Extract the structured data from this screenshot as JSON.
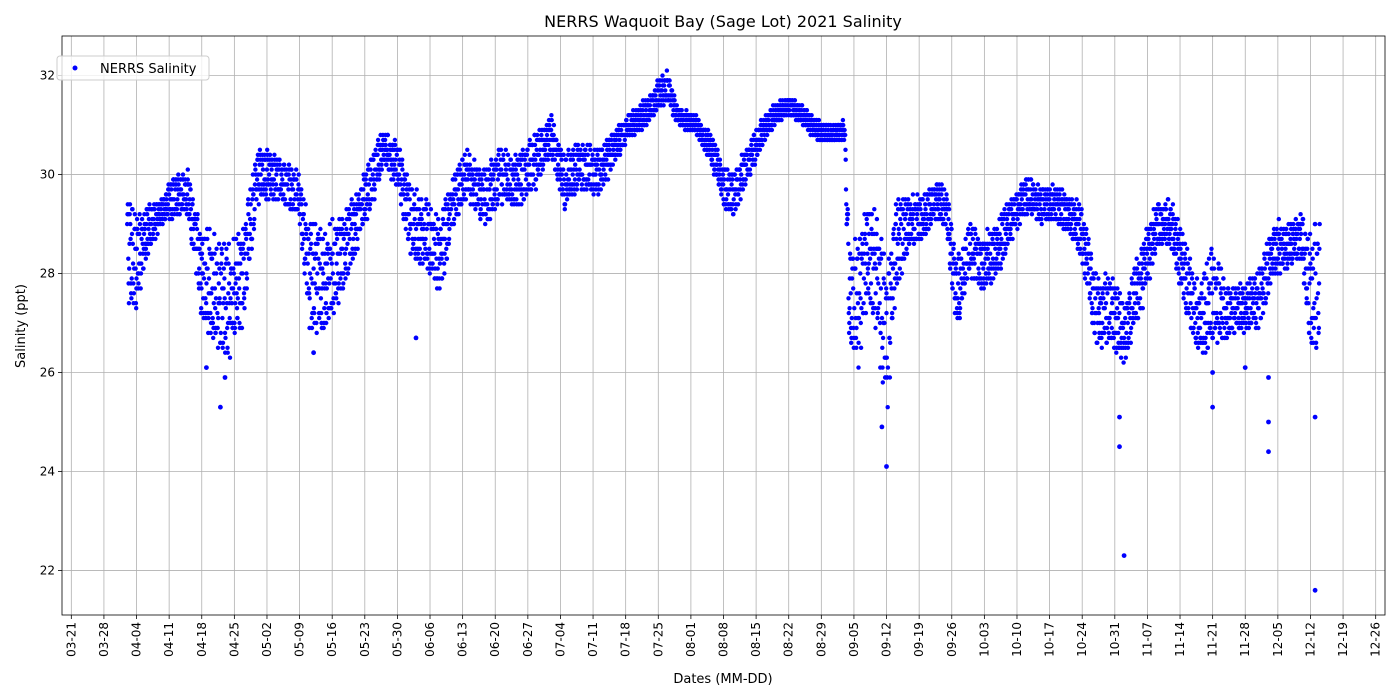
{
  "chart_data": {
    "type": "scatter",
    "title": "NERRS Waquoit Bay (Sage Lot) 2021 Salinity",
    "xlabel": "Dates (MM-DD)",
    "ylabel": "Salinity (ppt)",
    "x_range": [
      "2021-03-19",
      "2021-12-28"
    ],
    "ylim": [
      21.1,
      32.8
    ],
    "grid": true,
    "legend_position": "upper left",
    "marker_color": "#0000ff",
    "x_ticks": [
      "03-21",
      "03-28",
      "04-04",
      "04-11",
      "04-18",
      "04-25",
      "05-02",
      "05-09",
      "05-16",
      "05-23",
      "05-30",
      "06-06",
      "06-13",
      "06-20",
      "06-27",
      "07-04",
      "07-11",
      "07-18",
      "07-25",
      "08-01",
      "08-08",
      "08-15",
      "08-22",
      "08-29",
      "09-05",
      "09-12",
      "09-19",
      "09-26",
      "10-03",
      "10-10",
      "10-17",
      "10-24",
      "10-31",
      "11-07",
      "11-14",
      "11-21",
      "11-28",
      "12-05",
      "12-12",
      "12-19",
      "12-26"
    ],
    "y_ticks": [
      "22",
      "24",
      "26",
      "28",
      "30",
      "32"
    ],
    "series": [
      {
        "name": "NERRS Salinity",
        "profile": [
          [
            "2021-04-02",
            28.5,
            1.2
          ],
          [
            "2021-04-04",
            28.2,
            1.0
          ],
          [
            "2021-04-06",
            28.8,
            0.6
          ],
          [
            "2021-04-09",
            29.2,
            0.3
          ],
          [
            "2021-04-12",
            29.6,
            0.5
          ],
          [
            "2021-04-15",
            29.6,
            0.5
          ],
          [
            "2021-04-18",
            28.0,
            1.0
          ],
          [
            "2021-04-21",
            27.5,
            1.3
          ],
          [
            "2021-04-24",
            27.5,
            1.2
          ],
          [
            "2021-04-27",
            28.0,
            1.0
          ],
          [
            "2021-04-30",
            30.0,
            0.6
          ],
          [
            "2021-05-03",
            30.0,
            0.5
          ],
          [
            "2021-05-06",
            29.8,
            0.5
          ],
          [
            "2021-05-09",
            29.5,
            0.5
          ],
          [
            "2021-05-11",
            28.0,
            1.2
          ],
          [
            "2021-05-14",
            27.8,
            1.1
          ],
          [
            "2021-05-17",
            28.2,
            1.0
          ],
          [
            "2021-05-21",
            29.0,
            0.7
          ],
          [
            "2021-05-24",
            29.8,
            0.6
          ],
          [
            "2021-05-27",
            30.5,
            0.4
          ],
          [
            "2021-05-30",
            30.2,
            0.5
          ],
          [
            "2021-06-02",
            29.0,
            0.8
          ],
          [
            "2021-06-05",
            28.8,
            0.8
          ],
          [
            "2021-06-08",
            28.3,
            0.8
          ],
          [
            "2021-06-11",
            29.5,
            0.6
          ],
          [
            "2021-06-14",
            30.0,
            0.5
          ],
          [
            "2021-06-18",
            29.5,
            0.6
          ],
          [
            "2021-06-21",
            30.0,
            0.6
          ],
          [
            "2021-06-24",
            29.8,
            0.6
          ],
          [
            "2021-06-28",
            30.2,
            0.6
          ],
          [
            "2021-07-02",
            30.8,
            0.4
          ],
          [
            "2021-07-05",
            29.8,
            0.6
          ],
          [
            "2021-07-08",
            30.2,
            0.5
          ],
          [
            "2021-07-12",
            30.0,
            0.5
          ],
          [
            "2021-07-15",
            30.5,
            0.4
          ],
          [
            "2021-07-18",
            30.9,
            0.3
          ],
          [
            "2021-07-22",
            31.2,
            0.3
          ],
          [
            "2021-07-25",
            31.6,
            0.3
          ],
          [
            "2021-07-27",
            31.8,
            0.3
          ],
          [
            "2021-07-29",
            31.2,
            0.2
          ],
          [
            "2021-08-02",
            31.0,
            0.2
          ],
          [
            "2021-08-05",
            30.6,
            0.3
          ],
          [
            "2021-08-08",
            29.8,
            0.5
          ],
          [
            "2021-08-10",
            29.6,
            0.5
          ],
          [
            "2021-08-13",
            30.2,
            0.4
          ],
          [
            "2021-08-16",
            30.8,
            0.3
          ],
          [
            "2021-08-19",
            31.2,
            0.2
          ],
          [
            "2021-08-22",
            31.4,
            0.2
          ],
          [
            "2021-08-25",
            31.2,
            0.2
          ],
          [
            "2021-08-28",
            30.9,
            0.2
          ],
          [
            "2021-08-31",
            30.8,
            0.2
          ],
          [
            "2021-09-03",
            30.9,
            0.2
          ],
          [
            "2021-09-04",
            27.5,
            1.1
          ],
          [
            "2021-09-06",
            27.5,
            1.4
          ],
          [
            "2021-09-08",
            28.5,
            1.1
          ],
          [
            "2021-09-10",
            28.0,
            1.3
          ],
          [
            "2021-09-12",
            26.5,
            1.6
          ],
          [
            "2021-09-14",
            28.5,
            1.0
          ],
          [
            "2021-09-17",
            29.0,
            0.6
          ],
          [
            "2021-09-20",
            29.2,
            0.5
          ],
          [
            "2021-09-23",
            29.5,
            0.4
          ],
          [
            "2021-09-25",
            29.2,
            0.5
          ],
          [
            "2021-09-27",
            27.5,
            0.8
          ],
          [
            "2021-09-30",
            28.5,
            0.6
          ],
          [
            "2021-10-03",
            28.2,
            0.6
          ],
          [
            "2021-10-06",
            28.5,
            0.6
          ],
          [
            "2021-10-09",
            29.2,
            0.5
          ],
          [
            "2021-10-12",
            29.6,
            0.4
          ],
          [
            "2021-10-15",
            29.4,
            0.4
          ],
          [
            "2021-10-18",
            29.4,
            0.4
          ],
          [
            "2021-10-21",
            29.2,
            0.4
          ],
          [
            "2021-10-24",
            28.8,
            0.6
          ],
          [
            "2021-10-27",
            27.2,
            0.8
          ],
          [
            "2021-10-30",
            27.3,
            0.8
          ],
          [
            "2021-11-02",
            26.8,
            0.7
          ],
          [
            "2021-11-06",
            28.0,
            0.7
          ],
          [
            "2021-11-09",
            29.0,
            0.5
          ],
          [
            "2021-11-12",
            29.0,
            0.5
          ],
          [
            "2021-11-15",
            28.0,
            0.8
          ],
          [
            "2021-11-18",
            27.0,
            0.8
          ],
          [
            "2021-11-21",
            27.5,
            1.1
          ],
          [
            "2021-11-24",
            27.2,
            0.6
          ],
          [
            "2021-11-28",
            27.3,
            0.5
          ],
          [
            "2021-12-01",
            27.5,
            0.6
          ],
          [
            "2021-12-04",
            28.5,
            0.6
          ],
          [
            "2021-12-07",
            28.5,
            0.5
          ],
          [
            "2021-12-10",
            28.8,
            0.5
          ],
          [
            "2021-12-12",
            27.5,
            1.3
          ],
          [
            "2021-12-14",
            28.0,
            1.5
          ]
        ],
        "outliers": [
          [
            "2021-04-22",
            25.3
          ],
          [
            "2021-04-19",
            26.1
          ],
          [
            "2021-05-12",
            26.4
          ],
          [
            "2021-06-03",
            26.7
          ],
          [
            "2021-09-12",
            24.1
          ],
          [
            "2021-09-11",
            24.9
          ],
          [
            "2021-11-02",
            22.3
          ],
          [
            "2021-11-01",
            24.5
          ],
          [
            "2021-11-01",
            25.1
          ],
          [
            "2021-11-21",
            25.3
          ],
          [
            "2021-11-21",
            26.0
          ],
          [
            "2021-12-03",
            24.4
          ],
          [
            "2021-12-03",
            25.0
          ],
          [
            "2021-12-03",
            25.9
          ],
          [
            "2021-12-13",
            21.6
          ],
          [
            "2021-12-13",
            25.1
          ],
          [
            "2021-04-23",
            25.9
          ],
          [
            "2021-11-28",
            26.1
          ]
        ]
      }
    ]
  }
}
